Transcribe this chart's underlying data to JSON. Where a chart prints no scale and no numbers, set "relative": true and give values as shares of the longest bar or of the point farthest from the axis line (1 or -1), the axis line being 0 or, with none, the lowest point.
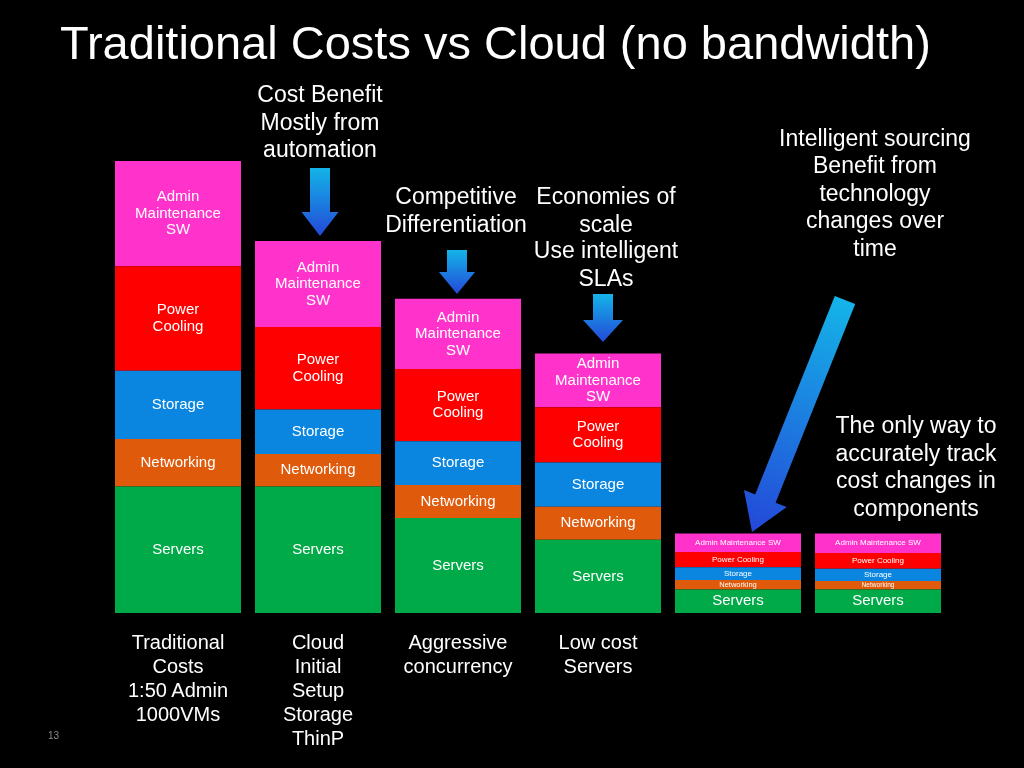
{
  "chart_data": {
    "type": "bar",
    "title": "Traditional Costs vs Cloud (no bandwidth)",
    "categories": [
      "Traditional Costs 1:50 Admin 1000VMs",
      "Cloud Initial Setup Storage ThinP",
      "Aggressive concurrency",
      "Low cost Servers",
      null,
      null
    ],
    "stacked": true,
    "relative": true,
    "series": [
      {
        "name": "Servers",
        "color": "#00aa48",
        "values": [
          0.28,
          0.28,
          0.21,
          0.162,
          0.052,
          0.052
        ]
      },
      {
        "name": "Networking",
        "color": "#e05a0c",
        "values": [
          0.105,
          0.072,
          0.073,
          0.073,
          0.021,
          0.019
        ]
      },
      {
        "name": "Storage",
        "color": "#0a86e0",
        "values": [
          0.151,
          0.098,
          0.097,
          0.098,
          0.028,
          0.027
        ]
      },
      {
        "name": "Power Cooling",
        "color": "#ff0000",
        "values": [
          0.231,
          0.183,
          0.16,
          0.122,
          0.034,
          0.035
        ]
      },
      {
        "name": "Admin Maintenance SW",
        "color": "#ff33cc",
        "values": [
          0.233,
          0.19,
          0.155,
          0.119,
          0.041,
          0.043
        ]
      }
    ],
    "annotations": [
      "Cost Benefit Mostly from automation",
      "Competitive Differentiation",
      "Economies of scale",
      "Use intelligent SLAs",
      "Intelligent sourcing",
      "Benefit from technology changes over time",
      "The only way to accurately track cost changes in components",
      "13"
    ]
  }
}
